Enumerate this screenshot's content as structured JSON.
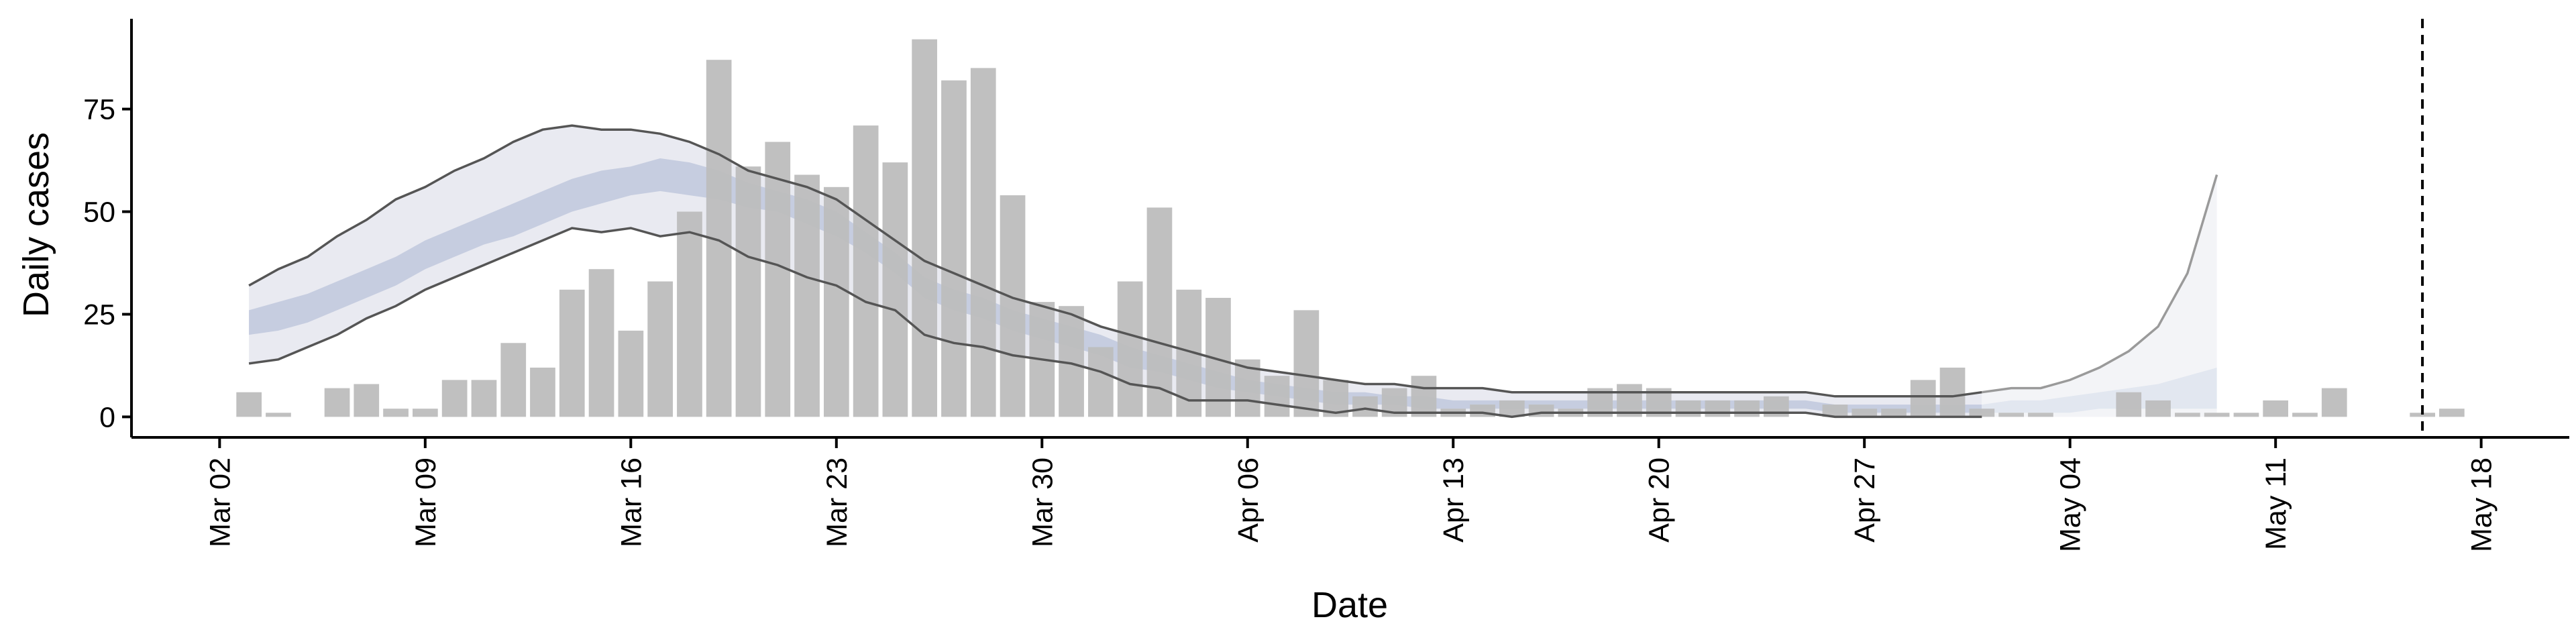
{
  "chart_data": {
    "type": "bar",
    "xlabel": "Date",
    "ylabel": "Daily cases",
    "ylim": [
      -5,
      97
    ],
    "yticks": [
      0,
      25,
      50,
      75
    ],
    "x_domain": [
      "2020-02-28",
      "2020-05-21"
    ],
    "xticks": [
      {
        "date": "2020-03-02",
        "label": "Mar 02"
      },
      {
        "date": "2020-03-09",
        "label": "Mar 09"
      },
      {
        "date": "2020-03-16",
        "label": "Mar 16"
      },
      {
        "date": "2020-03-23",
        "label": "Mar 23"
      },
      {
        "date": "2020-03-30",
        "label": "Mar 30"
      },
      {
        "date": "2020-04-06",
        "label": "Apr 06"
      },
      {
        "date": "2020-04-13",
        "label": "Apr 13"
      },
      {
        "date": "2020-04-20",
        "label": "Apr 20"
      },
      {
        "date": "2020-04-27",
        "label": "Apr 27"
      },
      {
        "date": "2020-05-04",
        "label": "May 04"
      },
      {
        "date": "2020-05-11",
        "label": "May 11"
      },
      {
        "date": "2020-05-18",
        "label": "May 18"
      }
    ],
    "bars": {
      "start_date": "2020-03-03",
      "values": [
        6,
        1,
        0,
        7,
        8,
        2,
        2,
        9,
        9,
        18,
        12,
        31,
        36,
        21,
        33,
        50,
        87,
        61,
        67,
        59,
        56,
        71,
        62,
        92,
        82,
        85,
        54,
        28,
        27,
        17,
        33,
        51,
        31,
        29,
        14,
        10,
        26,
        9,
        5,
        7,
        10,
        2,
        3,
        4,
        3,
        2,
        7,
        8,
        7,
        4,
        4,
        4,
        5,
        0,
        3,
        2,
        2,
        9,
        12,
        2,
        1,
        1,
        0,
        0,
        6,
        4,
        1,
        1,
        1,
        4,
        1,
        7,
        0,
        0,
        1,
        2
      ]
    },
    "estimate": {
      "start_date": "2020-03-03",
      "upper90": [
        32,
        36,
        39,
        44,
        48,
        53,
        56,
        60,
        63,
        67,
        70,
        71,
        70,
        70,
        69,
        67,
        64,
        60,
        58,
        56,
        53,
        48,
        43,
        38,
        35,
        32,
        29,
        27,
        25,
        22,
        20,
        18,
        16,
        14,
        12,
        11,
        10,
        9,
        8,
        8,
        7,
        7,
        7,
        6,
        6,
        6,
        6,
        6,
        6,
        6,
        6,
        6,
        6,
        6,
        5,
        5,
        5,
        5,
        5,
        6,
        7,
        7,
        9,
        12,
        16,
        22,
        35,
        59
      ],
      "lower90": [
        13,
        14,
        17,
        20,
        24,
        27,
        31,
        34,
        37,
        40,
        43,
        46,
        45,
        46,
        44,
        45,
        43,
        39,
        37,
        34,
        32,
        28,
        26,
        20,
        18,
        17,
        15,
        14,
        13,
        11,
        8,
        7,
        4,
        4,
        4,
        3,
        2,
        1,
        2,
        1,
        1,
        1,
        1,
        0,
        1,
        1,
        1,
        1,
        1,
        1,
        1,
        1,
        1,
        1,
        0,
        0,
        0,
        0,
        0,
        0,
        0,
        0,
        0,
        0,
        0,
        0,
        0,
        0
      ],
      "upper50": [
        26,
        28,
        30,
        33,
        36,
        39,
        43,
        46,
        49,
        52,
        55,
        58,
        60,
        61,
        63,
        62,
        60,
        57,
        55,
        53,
        50,
        45,
        40,
        34,
        31,
        29,
        26,
        24,
        22,
        20,
        17,
        15,
        13,
        11,
        9,
        8,
        7,
        6,
        6,
        5,
        5,
        4,
        4,
        4,
        4,
        4,
        4,
        4,
        4,
        4,
        4,
        4,
        4,
        4,
        3,
        3,
        3,
        3,
        3,
        3,
        4,
        4,
        5,
        6,
        7,
        8,
        10,
        12
      ],
      "lower50": [
        20,
        21,
        23,
        26,
        29,
        32,
        36,
        39,
        42,
        44,
        47,
        50,
        52,
        54,
        55,
        54,
        53,
        51,
        50,
        47,
        44,
        40,
        35,
        29,
        26,
        24,
        21,
        19,
        17,
        15,
        12,
        11,
        9,
        7,
        6,
        5,
        4,
        3,
        3,
        3,
        2,
        2,
        2,
        2,
        2,
        2,
        2,
        2,
        2,
        2,
        2,
        2,
        2,
        2,
        1,
        1,
        1,
        1,
        1,
        1,
        1,
        1,
        1,
        2,
        2,
        2,
        2,
        2
      ]
    },
    "forecast_start_date": "2020-05-01",
    "vline_date": "2020-05-16",
    "colors": {
      "bars": "#bdbdbd",
      "band_outer": "#e9eaf1",
      "band_inner": "#c6cde0",
      "band_lines": "#555555",
      "forecast_outer": "#f3f4f7",
      "forecast_inner": "#e2e7f0",
      "forecast_lines": "#9a9a9a"
    }
  }
}
